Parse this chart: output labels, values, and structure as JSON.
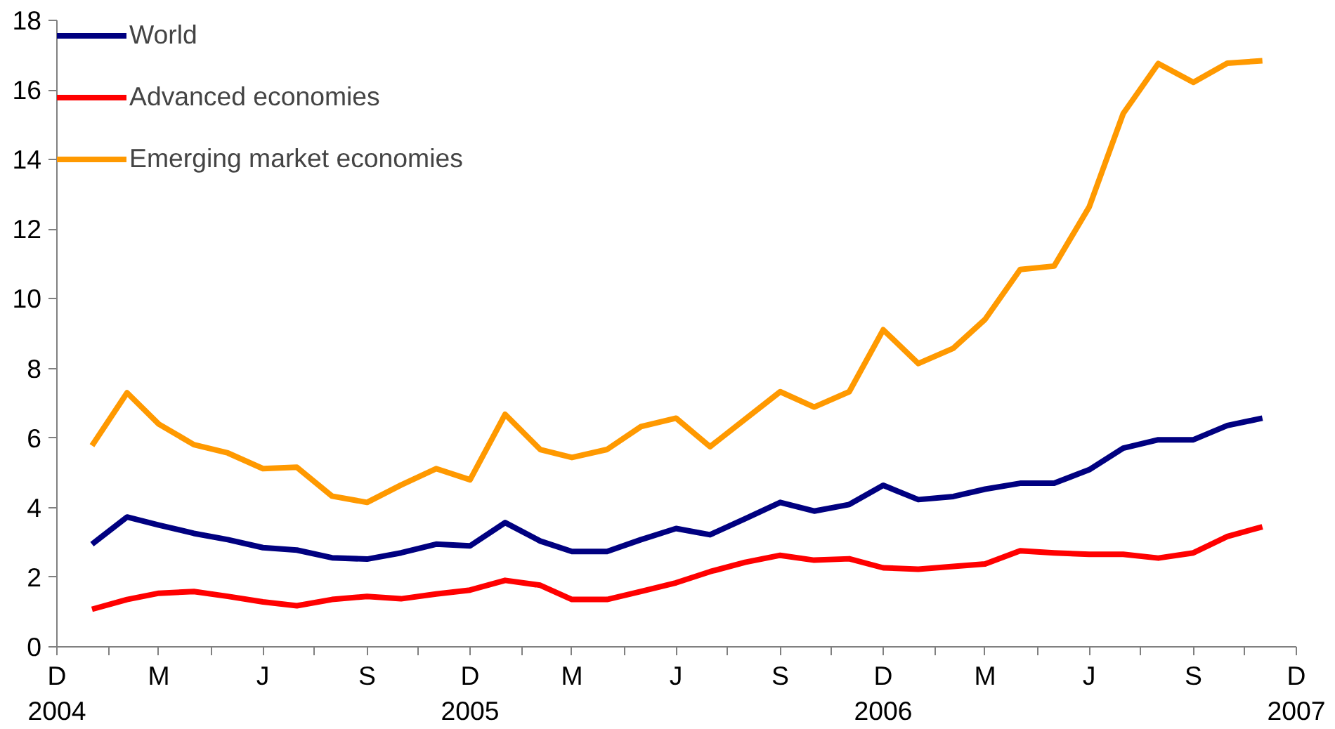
{
  "chart_data": {
    "type": "line",
    "x": [
      "2005-01",
      "2005-02",
      "2005-03",
      "2005-04",
      "2005-05",
      "2005-06",
      "2005-07",
      "2005-08",
      "2005-09",
      "2005-10",
      "2005-11",
      "2005-12",
      "2006-01",
      "2006-02",
      "2006-03",
      "2006-04",
      "2006-05",
      "2006-06",
      "2006-07",
      "2006-08",
      "2006-09",
      "2006-10",
      "2006-11",
      "2006-12",
      "2007-01",
      "2007-02",
      "2007-03",
      "2007-04",
      "2007-05",
      "2007-06",
      "2007-07",
      "2007-08",
      "2007-09",
      "2007-10",
      "2007-11"
    ],
    "series": [
      {
        "name": "World",
        "color": "#000080",
        "values": [
          2.95,
          3.73,
          3.5,
          3.26,
          3.08,
          2.85,
          2.78,
          2.56,
          2.52,
          2.7,
          2.95,
          2.9,
          3.57,
          3.04,
          2.74,
          2.74,
          3.08,
          3.4,
          3.22,
          3.68,
          4.15,
          3.9,
          4.09,
          4.64,
          4.23,
          4.32,
          4.53,
          4.7,
          4.7,
          5.09,
          5.71,
          5.95,
          5.95,
          6.36,
          6.57
        ]
      },
      {
        "name": "Advanced economies",
        "color": "#ff0000",
        "values": [
          1.08,
          1.36,
          1.54,
          1.59,
          1.45,
          1.29,
          1.18,
          1.36,
          1.45,
          1.38,
          1.52,
          1.63,
          1.91,
          1.77,
          1.36,
          1.36,
          1.59,
          1.84,
          2.16,
          2.43,
          2.63,
          2.49,
          2.53,
          2.27,
          2.23,
          2.31,
          2.38,
          2.76,
          2.7,
          2.66,
          2.66,
          2.55,
          2.7,
          3.17,
          3.45
        ]
      },
      {
        "name": "Emerging market economies",
        "color": "#ff9900",
        "values": [
          5.78,
          7.3,
          6.4,
          5.81,
          5.57,
          5.12,
          5.16,
          4.33,
          4.15,
          4.65,
          5.12,
          4.8,
          6.68,
          5.67,
          5.44,
          5.67,
          6.33,
          6.57,
          5.75,
          6.54,
          7.33,
          6.89,
          7.33,
          9.11,
          8.14,
          8.58,
          9.41,
          10.84,
          10.94,
          12.64,
          15.32,
          16.76,
          16.22,
          16.77,
          16.84
        ]
      }
    ],
    "xlim": [
      "2004-12",
      "2007-12"
    ],
    "xticks": [
      {
        "value": "2004-12",
        "label": "D\n2004"
      },
      {
        "value": "2005-01-16",
        "label": null
      },
      {
        "value": "2005-03",
        "label": "M"
      },
      {
        "value": "2005-04-16",
        "label": null
      },
      {
        "value": "2005-06",
        "label": "J"
      },
      {
        "value": "2005-07-16",
        "label": null
      },
      {
        "value": "2005-09",
        "label": "S"
      },
      {
        "value": "2005-10-16",
        "label": null
      },
      {
        "value": "2005-12",
        "label": "D\n2005"
      },
      {
        "value": "2006-01-16",
        "label": null
      },
      {
        "value": "2006-03",
        "label": "M"
      },
      {
        "value": "2006-04-16",
        "label": null
      },
      {
        "value": "2006-06",
        "label": "J"
      },
      {
        "value": "2006-07-16",
        "label": null
      },
      {
        "value": "2006-09",
        "label": "S"
      },
      {
        "value": "2006-10-16",
        "label": null
      },
      {
        "value": "2006-12",
        "label": "D\n2006"
      },
      {
        "value": "2007-01-16",
        "label": null
      },
      {
        "value": "2007-03",
        "label": "M"
      },
      {
        "value": "2007-04-16",
        "label": null
      },
      {
        "value": "2007-06",
        "label": "J"
      },
      {
        "value": "2007-07-16",
        "label": null
      },
      {
        "value": "2007-09",
        "label": "S"
      },
      {
        "value": "2007-10-16",
        "label": null
      },
      {
        "value": "2007-12",
        "label": "D\n2007"
      }
    ],
    "ylim": [
      0,
      18
    ],
    "yticks": [
      0,
      2,
      4,
      6,
      8,
      10,
      12,
      14,
      16,
      18
    ],
    "grid": false,
    "legend": "top left",
    "marker": "none",
    "line_style": "solid"
  }
}
